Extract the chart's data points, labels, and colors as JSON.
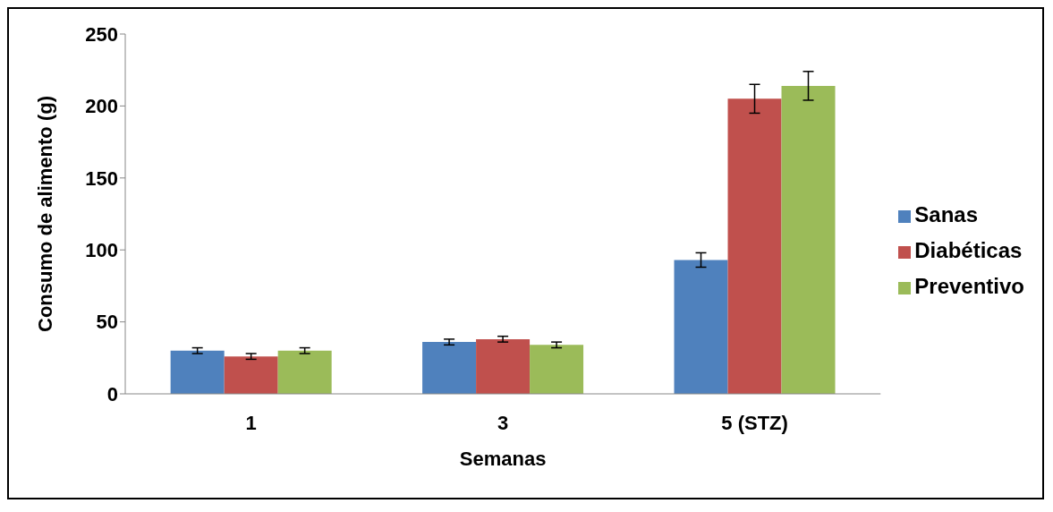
{
  "chart_data": {
    "type": "bar",
    "xlabel": "Semanas",
    "ylabel": "Consumo de alimento (g)",
    "categories": [
      "1",
      "3",
      "5 (STZ)"
    ],
    "series": [
      {
        "name": "Sanas",
        "color": "#4f81bd",
        "values": [
          30,
          36,
          93
        ],
        "errors": [
          2,
          2,
          5
        ]
      },
      {
        "name": "Diabéticas",
        "color": "#c0504d",
        "values": [
          26,
          38,
          205
        ],
        "errors": [
          2,
          2,
          10
        ]
      },
      {
        "name": "Preventivo",
        "color": "#9bbb59",
        "values": [
          30,
          34,
          214
        ],
        "errors": [
          2,
          2,
          10
        ]
      }
    ],
    "ylim": [
      0,
      250
    ],
    "yticks": [
      0,
      50,
      100,
      150,
      200,
      250
    ],
    "grid": false,
    "legend": "right"
  }
}
